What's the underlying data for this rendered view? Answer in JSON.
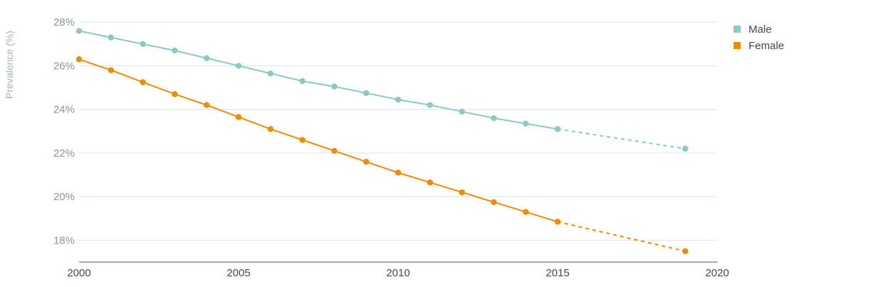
{
  "chart_data": {
    "type": "line",
    "ylabel": "Prevalence (%)",
    "xlabel": "",
    "xlim": [
      2000,
      2020
    ],
    "ylim": [
      17,
      28.3
    ],
    "x_ticks": [
      "2000",
      "2005",
      "2010",
      "2015",
      "2020"
    ],
    "y_ticks": [
      "18%",
      "20%",
      "22%",
      "24%",
      "26%",
      "28%"
    ],
    "y_tick_values": [
      18,
      20,
      22,
      24,
      26,
      28
    ],
    "x_tick_values": [
      2000,
      2005,
      2010,
      2015,
      2020
    ],
    "grid": true,
    "legend": "top-right",
    "series": [
      {
        "name": "Male",
        "color": "#8ec8c4",
        "x": [
          2000,
          2001,
          2002,
          2003,
          2004,
          2005,
          2006,
          2007,
          2008,
          2009,
          2010,
          2011,
          2012,
          2013,
          2014,
          2015,
          2019
        ],
        "values": [
          27.6,
          27.3,
          27.0,
          26.7,
          26.35,
          26.0,
          25.65,
          25.3,
          25.05,
          24.75,
          24.45,
          24.2,
          23.9,
          23.6,
          23.35,
          23.1,
          22.2
        ],
        "projected_from": 2015
      },
      {
        "name": "Female",
        "color": "#ee8c00",
        "x": [
          2000,
          2001,
          2002,
          2003,
          2004,
          2005,
          2006,
          2007,
          2008,
          2009,
          2010,
          2011,
          2012,
          2013,
          2014,
          2015,
          2019
        ],
        "values": [
          26.3,
          25.8,
          25.25,
          24.7,
          24.2,
          23.65,
          23.1,
          22.6,
          22.1,
          21.6,
          21.1,
          20.65,
          20.2,
          19.75,
          19.3,
          18.85,
          17.5
        ],
        "projected_from": 2015
      }
    ]
  }
}
